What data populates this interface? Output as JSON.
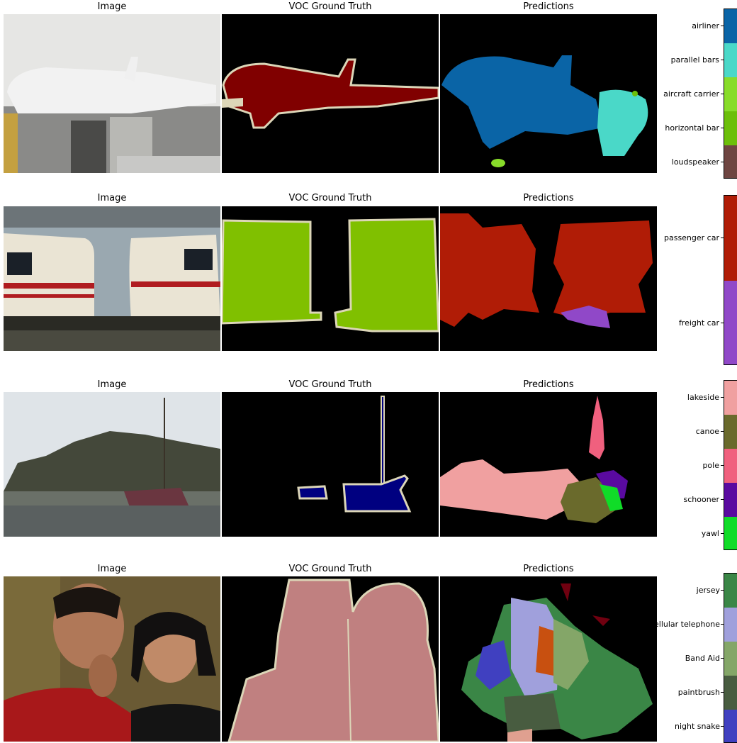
{
  "panel_titles": {
    "image": "Image",
    "truth": "VOC Ground Truth",
    "pred": "Predictions"
  },
  "rows": [
    {
      "legend": [
        {
          "label": "airliner",
          "color": "#0a64a6"
        },
        {
          "label": "parallel bars",
          "color": "#4ad8c8"
        },
        {
          "label": "aircraft carrier",
          "color": "#88dc2a"
        },
        {
          "label": "horizontal bar",
          "color": "#6cbf0a"
        },
        {
          "label": "loudspeaker",
          "color": "#6e4541"
        }
      ]
    },
    {
      "legend": [
        {
          "label": "passenger car",
          "color": "#b01c06"
        },
        {
          "label": "freight car",
          "color": "#9048c8"
        }
      ]
    },
    {
      "legend": [
        {
          "label": "lakeside",
          "color": "#f0a0a0"
        },
        {
          "label": "canoe",
          "color": "#6a6a2c"
        },
        {
          "label": "pole",
          "color": "#f0607e"
        },
        {
          "label": "schooner",
          "color": "#5a0aa0"
        },
        {
          "label": "yawl",
          "color": "#10dc28"
        }
      ]
    },
    {
      "legend": [
        {
          "label": "jersey",
          "color": "#3a8646"
        },
        {
          "label": "cellular telephone",
          "color": "#a0a0dc"
        },
        {
          "label": "Band Aid",
          "color": "#84a668"
        },
        {
          "label": "paintbrush",
          "color": "#485c40"
        },
        {
          "label": "night snake",
          "color": "#4040c0"
        }
      ]
    }
  ]
}
